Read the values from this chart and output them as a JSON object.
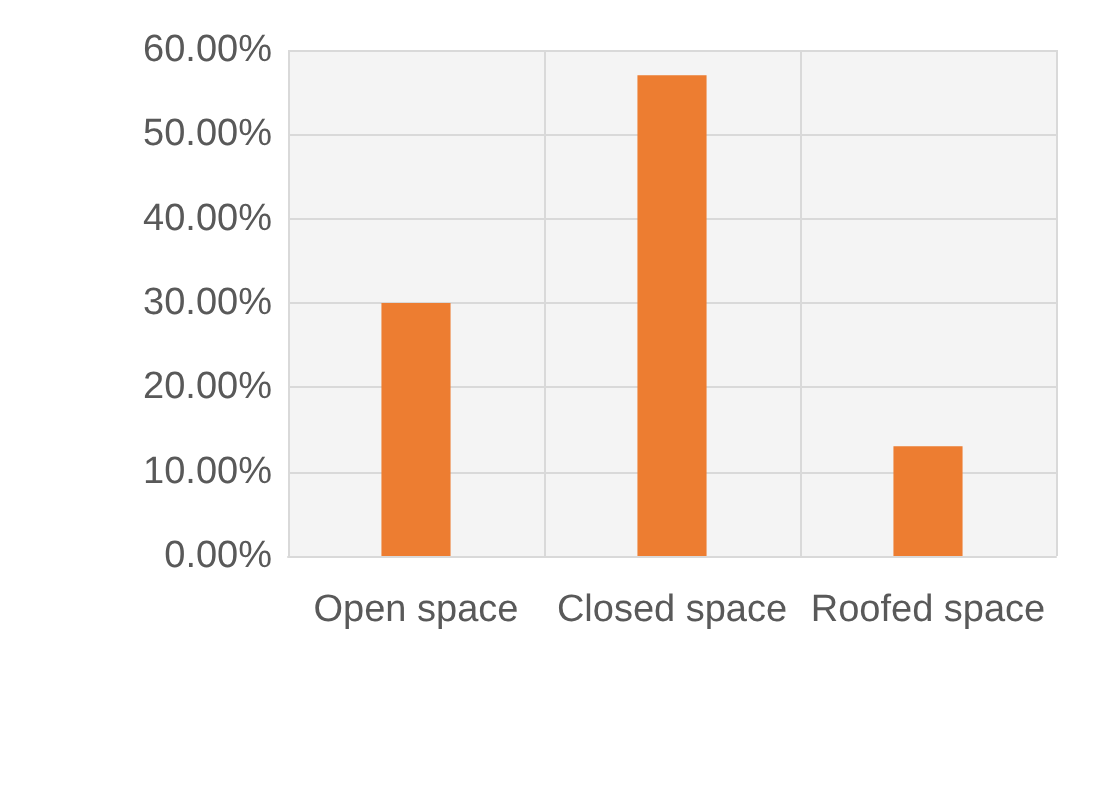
{
  "chart_data": {
    "type": "bar",
    "categories": [
      "Open space",
      "Closed space",
      "Roofed space"
    ],
    "values": [
      30,
      57,
      13
    ],
    "color": "#ed7d31",
    "ylim": [
      0,
      60
    ],
    "yticks": [
      {
        "value": 0,
        "label": "0.00%"
      },
      {
        "value": 10,
        "label": "10.00%"
      },
      {
        "value": 20,
        "label": "20.00%"
      },
      {
        "value": 30,
        "label": "30.00%"
      },
      {
        "value": 40,
        "label": "40.00%"
      },
      {
        "value": 50,
        "label": "50.00%"
      },
      {
        "value": 60,
        "label": "60.00%"
      }
    ],
    "grid": true
  }
}
